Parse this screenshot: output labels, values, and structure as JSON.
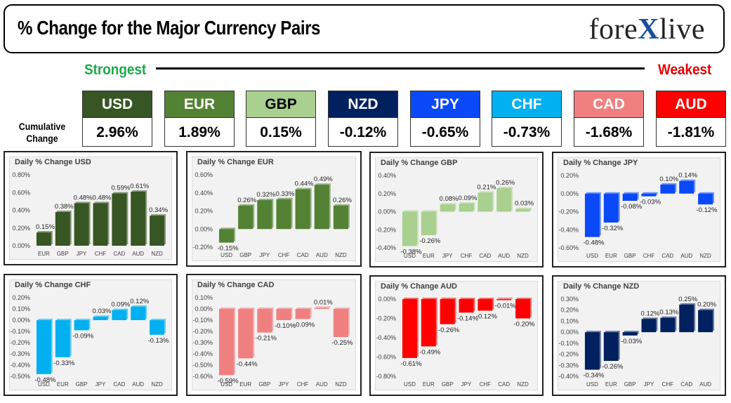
{
  "header": {
    "title": "% Change for the Major Currency Pairs",
    "logo_left": "fore",
    "logo_x": "X",
    "logo_right": "live"
  },
  "scale": {
    "strongest": "Strongest",
    "weakest": "Weakest"
  },
  "cumulative_label": "Cumulative Change",
  "currencies": [
    {
      "code": "USD",
      "pct": "2.96%",
      "bg": "#375623",
      "fg": "#ffffff"
    },
    {
      "code": "EUR",
      "pct": "1.89%",
      "bg": "#548235",
      "fg": "#ffffff"
    },
    {
      "code": "GBP",
      "pct": "0.15%",
      "bg": "#a9d08e",
      "fg": "#000000"
    },
    {
      "code": "NZD",
      "pct": "-0.12%",
      "bg": "#002060",
      "fg": "#ffffff"
    },
    {
      "code": "JPY",
      "pct": "-0.65%",
      "bg": "#0a49f7",
      "fg": "#ffffff"
    },
    {
      "code": "CHF",
      "pct": "-0.73%",
      "bg": "#00b0f0",
      "fg": "#ffffff"
    },
    {
      "code": "CAD",
      "pct": "-1.68%",
      "bg": "#f08080",
      "fg": "#ffffff"
    },
    {
      "code": "AUD",
      "pct": "-1.81%",
      "bg": "#ff0000",
      "fg": "#ffffff"
    }
  ],
  "chart_data": [
    {
      "type": "bar",
      "title": "Daily % Change USD",
      "categories": [
        "EUR",
        "GBP",
        "JPY",
        "CHF",
        "CAD",
        "AUD",
        "NZD"
      ],
      "values": [
        0.15,
        0.38,
        0.48,
        0.48,
        0.59,
        0.61,
        0.34
      ],
      "labels": [
        "0.15%",
        "0.38%",
        "0.48%",
        "0.48%",
        "0.59%",
        "0.61%",
        "0.34%"
      ],
      "ticks": [
        "0.00%",
        "0.20%",
        "0.40%",
        "0.60%",
        "0.80%"
      ],
      "ylim": [
        0,
        0.8
      ],
      "color": "#375623"
    },
    {
      "type": "bar",
      "title": "Daily % Change EUR",
      "categories": [
        "USD",
        "GBP",
        "JPY",
        "CHF",
        "CAD",
        "AUD",
        "NZD"
      ],
      "values": [
        -0.15,
        0.26,
        0.32,
        0.33,
        0.44,
        0.49,
        0.26
      ],
      "labels": [
        "-0.15%",
        "0.26%",
        "0.32%",
        "0.33%",
        "0.44%",
        "0.49%",
        "0.26%"
      ],
      "ticks": [
        "-0.20%",
        "0.00%",
        "0.20%",
        "0.40%",
        "0.60%"
      ],
      "ylim": [
        -0.2,
        0.6
      ],
      "color": "#548235"
    },
    {
      "type": "bar",
      "title": "Daily % Change GBP",
      "categories": [
        "USD",
        "EUR",
        "JPY",
        "CHF",
        "CAD",
        "AUD",
        "NZD"
      ],
      "values": [
        -0.38,
        -0.26,
        0.08,
        0.09,
        0.21,
        0.26,
        0.03
      ],
      "labels": [
        "-0.38%",
        "-0.26%",
        "0.08%",
        "0.09%",
        "0.21%",
        "0.26%",
        "0.03%"
      ],
      "ticks": [
        "-0.40%",
        "-0.20%",
        "0.00%",
        "0.20%",
        "0.40%"
      ],
      "ylim": [
        -0.4,
        0.4
      ],
      "color": "#a9d08e"
    },
    {
      "type": "bar",
      "title": "Daily % Change JPY",
      "categories": [
        "USD",
        "EUR",
        "GBP",
        "CHF",
        "CAD",
        "AUD",
        "NZD"
      ],
      "values": [
        -0.48,
        -0.32,
        -0.08,
        -0.03,
        0.1,
        0.14,
        -0.12
      ],
      "labels": [
        "-0.48%",
        "-0.32%",
        "-0.08%",
        "-0.03%",
        "0.10%",
        "0.14%",
        "-0.12%"
      ],
      "ticks": [
        "-0.60%",
        "-0.40%",
        "-0.20%",
        "0.00%",
        "0.20%"
      ],
      "ylim": [
        -0.6,
        0.2
      ],
      "color": "#0a49f7"
    },
    {
      "type": "bar",
      "title": "Daily % Change CHF",
      "categories": [
        "USD",
        "EUR",
        "GBP",
        "JPY",
        "CAD",
        "AUD",
        "NZD"
      ],
      "values": [
        -0.48,
        -0.33,
        -0.09,
        0.03,
        0.09,
        0.12,
        -0.13
      ],
      "labels": [
        "-0.48%",
        "-0.33%",
        "-0.09%",
        "0.03%",
        "0.09%",
        "0.12%",
        "-0.13%"
      ],
      "ticks": [
        "-0.50%",
        "-0.40%",
        "-0.30%",
        "-0.20%",
        "-0.10%",
        "0.00%",
        "0.10%",
        "0.20%"
      ],
      "ylim": [
        -0.5,
        0.2
      ],
      "color": "#00b0f0"
    },
    {
      "type": "bar",
      "title": "Daily % Change CAD",
      "categories": [
        "USD",
        "EUR",
        "GBP",
        "JPY",
        "CHF",
        "AUD",
        "NZD"
      ],
      "values": [
        -0.59,
        -0.44,
        -0.21,
        -0.1,
        -0.09,
        0.01,
        -0.25
      ],
      "labels": [
        "-0.59%",
        "-0.44%",
        "-0.21%",
        "-0.10%",
        "-0.09%",
        "0.01%",
        "-0.25%"
      ],
      "ticks": [
        "-0.60%",
        "-0.50%",
        "-0.40%",
        "-0.30%",
        "-0.20%",
        "-0.10%",
        "0.00%",
        "0.10%"
      ],
      "ylim": [
        -0.6,
        0.1
      ],
      "color": "#f08080"
    },
    {
      "type": "bar",
      "title": "Daily % Change AUD",
      "categories": [
        "USD",
        "EUR",
        "GBP",
        "JPY",
        "CHF",
        "CAD",
        "NZD"
      ],
      "values": [
        -0.61,
        -0.49,
        -0.26,
        -0.14,
        -0.12,
        -0.01,
        -0.2
      ],
      "labels": [
        "-0.61%",
        "-0.49%",
        "-0.26%",
        "-0.14%",
        "-0.12%",
        "-0.01%",
        "-0.20%"
      ],
      "ticks": [
        "-0.80%",
        "-0.60%",
        "-0.40%",
        "-0.20%",
        "0.00%"
      ],
      "ylim": [
        -0.8,
        0
      ],
      "color": "#ff0000"
    },
    {
      "type": "bar",
      "title": "Daily % Change NZD",
      "categories": [
        "USD",
        "EUR",
        "GBP",
        "JPY",
        "CHF",
        "CAD",
        "AUD"
      ],
      "values": [
        -0.34,
        -0.26,
        -0.03,
        0.12,
        0.13,
        0.25,
        0.2
      ],
      "labels": [
        "-0.34%",
        "-0.26%",
        "-0.03%",
        "0.12%",
        "0.13%",
        "0.25%",
        "0.20%"
      ],
      "ticks": [
        "-0.40%",
        "-0.30%",
        "-0.20%",
        "-0.10%",
        "0.00%",
        "0.10%",
        "0.20%",
        "0.30%"
      ],
      "ylim": [
        -0.4,
        0.3
      ],
      "color": "#002060"
    }
  ]
}
